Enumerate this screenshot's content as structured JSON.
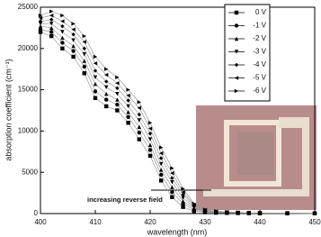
{
  "chart_data": {
    "type": "line",
    "x_label": "wavelength (nm)",
    "y_label": "absorption coefficient (cm⁻¹)",
    "annotation": "increasing reverse field",
    "x": [
      400,
      402,
      404,
      406,
      408,
      410,
      412,
      414,
      416,
      418,
      420,
      422,
      424,
      426,
      428,
      430,
      432,
      434,
      436,
      438,
      440,
      445,
      450
    ],
    "series": [
      {
        "name": "0 V",
        "color": "#000000",
        "marker": "square",
        "values": [
          22000,
          21500,
          20000,
          19000,
          17000,
          14000,
          13000,
          12500,
          11000,
          9000,
          7000,
          4000,
          2000,
          800,
          300,
          150,
          100,
          80,
          60,
          50,
          40,
          30,
          20
        ]
      },
      {
        "name": "-1 V",
        "color": "#000000",
        "marker": "circle",
        "values": [
          22300,
          22000,
          20700,
          19700,
          17800,
          14800,
          13800,
          13200,
          11700,
          9800,
          7700,
          4700,
          2600,
          1200,
          450,
          210,
          130,
          100,
          75,
          60,
          45,
          35,
          20
        ]
      },
      {
        "name": "-2 V",
        "color": "#000000",
        "marker": "triangle-up",
        "values": [
          22700,
          22500,
          21300,
          20300,
          18500,
          15700,
          14500,
          13800,
          12300,
          10500,
          8300,
          5300,
          3200,
          1500,
          600,
          270,
          170,
          120,
          90,
          65,
          55,
          35,
          25
        ]
      },
      {
        "name": "-3 V",
        "color": "#000000",
        "marker": "triangle-down",
        "values": [
          23000,
          23000,
          22000,
          21000,
          19300,
          16500,
          15300,
          14500,
          13000,
          11300,
          9000,
          6000,
          3800,
          1900,
          750,
          330,
          200,
          140,
          105,
          75,
          60,
          40,
          25
        ]
      },
      {
        "name": "-4 V",
        "color": "#000000",
        "marker": "diamond",
        "values": [
          23300,
          23500,
          22700,
          21700,
          20000,
          17300,
          16000,
          15200,
          13700,
          12000,
          9700,
          6700,
          4300,
          2300,
          900,
          380,
          230,
          160,
          120,
          85,
          65,
          45,
          25
        ]
      },
      {
        "name": "-5 V",
        "color": "#000000",
        "marker": "triangle-left",
        "values": [
          23700,
          24000,
          23300,
          22300,
          20800,
          18200,
          16800,
          15800,
          14300,
          12800,
          10300,
          7300,
          4900,
          2600,
          1050,
          440,
          270,
          180,
          135,
          90,
          75,
          50,
          30
        ]
      },
      {
        "name": "-6 V",
        "color": "#000000",
        "marker": "triangle-right",
        "values": [
          24000,
          24500,
          24000,
          23000,
          21500,
          19000,
          17500,
          16500,
          15000,
          13500,
          11000,
          8000,
          5500,
          3000,
          1200,
          500,
          300,
          200,
          150,
          100,
          80,
          50,
          30
        ]
      }
    ],
    "xlim": [
      400,
      450
    ],
    "xticks": [
      400,
      410,
      420,
      430,
      440,
      450
    ],
    "ylim": [
      0,
      25000
    ],
    "yticks": [
      0,
      5000,
      10000,
      15000,
      20000,
      25000
    ],
    "line_color": "#999999",
    "legend": "upper right"
  }
}
